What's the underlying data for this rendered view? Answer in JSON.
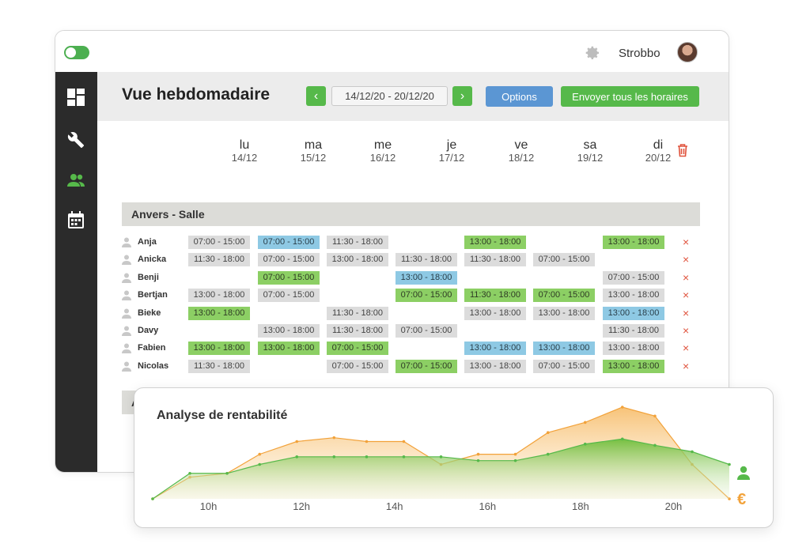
{
  "app": {
    "username": "Strobbo"
  },
  "page": {
    "title": "Vue hebdomadaire",
    "date_range": "14/12/20 - 20/12/20",
    "prev_label": "‹",
    "next_label": "›",
    "options_label": "Options",
    "send_label": "Envoyer tous les horaires"
  },
  "days": [
    {
      "name": "lu",
      "date": "14/12"
    },
    {
      "name": "ma",
      "date": "15/12"
    },
    {
      "name": "me",
      "date": "16/12"
    },
    {
      "name": "je",
      "date": "17/12"
    },
    {
      "name": "ve",
      "date": "18/12"
    },
    {
      "name": "sa",
      "date": "19/12"
    },
    {
      "name": "di",
      "date": "20/12"
    }
  ],
  "groups": [
    {
      "name": "Anvers - Salle",
      "rows": [
        {
          "name": "Anja",
          "shifts": [
            [
              "07:00 - 15:00",
              "gray"
            ],
            [
              "07:00 - 15:00",
              "blue"
            ],
            [
              "11:30 - 18:00",
              "gray"
            ],
            null,
            [
              "13:00 - 18:00",
              "green"
            ],
            null,
            [
              "13:00 - 18:00",
              "green"
            ]
          ]
        },
        {
          "name": "Anicka",
          "shifts": [
            [
              "11:30 - 18:00",
              "gray"
            ],
            [
              "07:00 - 15:00",
              "gray"
            ],
            [
              "13:00 - 18:00",
              "gray"
            ],
            [
              "11:30 - 18:00",
              "gray"
            ],
            [
              "11:30 - 18:00",
              "gray"
            ],
            [
              "07:00 - 15:00",
              "gray"
            ],
            null
          ]
        },
        {
          "name": "Benji",
          "shifts": [
            null,
            [
              "07:00 - 15:00",
              "green"
            ],
            null,
            [
              "13:00 - 18:00",
              "blue"
            ],
            null,
            null,
            [
              "07:00 - 15:00",
              "gray"
            ]
          ]
        },
        {
          "name": "Bertjan",
          "shifts": [
            [
              "13:00 - 18:00",
              "gray"
            ],
            [
              "07:00 - 15:00",
              "gray"
            ],
            null,
            [
              "07:00 - 15:00",
              "green"
            ],
            [
              "11:30 - 18:00",
              "green"
            ],
            [
              "07:00 - 15:00",
              "green"
            ],
            [
              "13:00 - 18:00",
              "gray"
            ]
          ]
        },
        {
          "name": "Bieke",
          "shifts": [
            [
              "13:00 - 18:00",
              "green"
            ],
            null,
            [
              "11:30 - 18:00",
              "gray"
            ],
            null,
            [
              "13:00 - 18:00",
              "gray"
            ],
            [
              "13:00 - 18:00",
              "gray"
            ],
            [
              "13:00 - 18:00",
              "blue"
            ]
          ]
        },
        {
          "name": "Davy",
          "shifts": [
            null,
            [
              "13:00 - 18:00",
              "gray"
            ],
            [
              "11:30 - 18:00",
              "gray"
            ],
            [
              "07:00 - 15:00",
              "gray"
            ],
            null,
            null,
            [
              "11:30 - 18:00",
              "gray"
            ]
          ]
        },
        {
          "name": "Fabien",
          "shifts": [
            [
              "13:00 - 18:00",
              "green"
            ],
            [
              "13:00 - 18:00",
              "green"
            ],
            [
              "07:00 - 15:00",
              "green"
            ],
            null,
            [
              "13:00 - 18:00",
              "blue"
            ],
            [
              "13:00 - 18:00",
              "blue"
            ],
            [
              "13:00 - 18:00",
              "gray"
            ]
          ]
        },
        {
          "name": "Nicolas",
          "shifts": [
            [
              "11:30 - 18:00",
              "gray"
            ],
            null,
            [
              "07:00 - 15:00",
              "gray"
            ],
            [
              "07:00 - 15:00",
              "green"
            ],
            [
              "13:00 - 18:00",
              "gray"
            ],
            [
              "07:00 - 15:00",
              "gray"
            ],
            [
              "13:00 - 18:00",
              "green"
            ]
          ]
        }
      ]
    },
    {
      "name": "Anvers - Cuisine",
      "rows": []
    }
  ],
  "remove_label": "×",
  "analysis": {
    "title": "Analyse de rentabilité",
    "currency_symbol": "€"
  },
  "chart_data": {
    "type": "area",
    "title": "Analyse de rentabilité",
    "x_ticks": [
      "10h",
      "12h",
      "14h",
      "16h",
      "18h",
      "20h"
    ],
    "x": [
      8.8,
      9.6,
      10.4,
      11.1,
      11.9,
      12.7,
      13.4,
      14.2,
      15.0,
      15.8,
      16.6,
      17.3,
      18.1,
      18.9,
      19.6,
      20.4,
      21.2
    ],
    "series": [
      {
        "color": "#56b94a",
        "values": [
          0,
          20,
          20,
          27,
          33,
          33,
          33,
          33,
          33,
          30,
          30,
          35,
          43,
          47,
          42,
          37,
          27
        ]
      },
      {
        "color": "#f2a23a",
        "values": [
          0,
          17,
          20,
          35,
          45,
          48,
          45,
          45,
          27,
          35,
          35,
          52,
          60,
          72,
          65,
          27,
          0
        ]
      }
    ],
    "colors": {
      "people": "#56b94a",
      "revenue": "#f2a23a"
    }
  }
}
